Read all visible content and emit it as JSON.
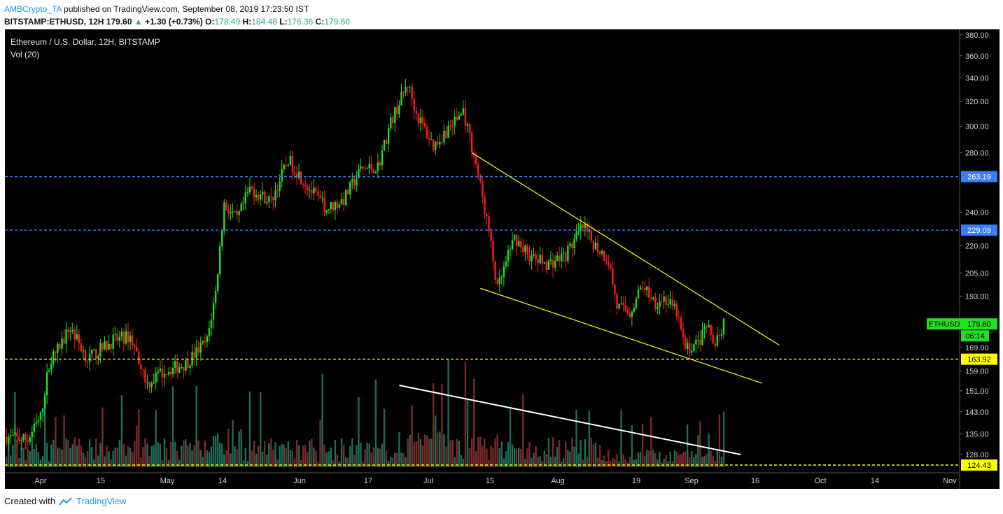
{
  "header": {
    "author": "AMBCrypto_TA",
    "published": "published on TradingView.com, September 08, 2019 17:23:50 IST",
    "symbol": "BITSTAMP:ETHUSD, 12H",
    "last": "179.60",
    "change_arrow": "▲",
    "change": "+1.30 (+0.73%)",
    "o_label": "O:",
    "o": "178.49",
    "h_label": "H:",
    "h": "184.48",
    "l_label": "L:",
    "l": "176.36",
    "c_label": "C:",
    "c": "179.60"
  },
  "chart_legend": {
    "title": "Ethereum / U.S. Dollar, 12H, BITSTAMP",
    "volume": "Vol (20)"
  },
  "footer": {
    "created_with": "Created with",
    "brand": "TradingView",
    "brand_icon": "tradingview-cloud-icon"
  },
  "colors": {
    "background": "#000000",
    "up": "#1fe01f",
    "down": "#ff1a1a",
    "vol_up": "#1f6b55",
    "vol_down": "#7a2a2a",
    "support_line": "#ffff00",
    "resistance_line": "#3a7bff",
    "trendline": "#ffff00",
    "volume_trend": "#ffffff"
  },
  "chart_data": {
    "type": "candlestick",
    "title": "Ethereum / U.S. Dollar, 12H, BITSTAMP",
    "price_scale": "log",
    "ylim": [
      115,
      385
    ],
    "y_ticks": [
      "380.00",
      "360.00",
      "340.00",
      "320.00",
      "300.00",
      "280.00",
      "240.00",
      "220.00",
      "205.00",
      "193.00",
      "169.00",
      "159.00",
      "151.00",
      "143.00",
      "135.00",
      "128.00"
    ],
    "x_ticks": [
      "Apr",
      "15",
      "May",
      "14",
      "Jun",
      "17",
      "Jul",
      "15",
      "Aug",
      "19",
      "Sep",
      "16",
      "Oct",
      "14",
      "Nov"
    ],
    "horizontal_levels": [
      {
        "price": 263.19,
        "label": "263.19",
        "style": "dashed",
        "color": "#3a7bff"
      },
      {
        "price": 229.09,
        "label": "229.09",
        "style": "dashed",
        "color": "#3a7bff"
      },
      {
        "price": 163.92,
        "label": "163.92",
        "style": "dashed",
        "color": "#ffff00"
      },
      {
        "price": 124.43,
        "label": "124.43",
        "style": "dashed",
        "color": "#ffff00"
      }
    ],
    "last_price": {
      "symbol": "ETHUSD",
      "value": "179.60",
      "countdown": "06:14"
    },
    "trendlines": [
      {
        "name": "upper wedge",
        "from": {
          "date": "2019-07-11",
          "price": 280
        },
        "to": {
          "date": "2019-09-21",
          "price": 170
        }
      },
      {
        "name": "lower wedge",
        "from": {
          "date": "2019-07-13",
          "price": 197
        },
        "to": {
          "date": "2019-09-17",
          "price": 154
        }
      },
      {
        "name": "volume downtrend",
        "color": "#ffffff",
        "from": {
          "date": "2019-06-24"
        },
        "to": {
          "date": "2019-09-12"
        }
      }
    ],
    "keypoints": [
      {
        "date": "2019-03-24",
        "price": 134
      },
      {
        "date": "2019-03-29",
        "price": 133
      },
      {
        "date": "2019-04-01",
        "price": 141
      },
      {
        "date": "2019-04-03",
        "price": 162
      },
      {
        "date": "2019-04-08",
        "price": 178
      },
      {
        "date": "2019-04-12",
        "price": 164
      },
      {
        "date": "2019-04-18",
        "price": 172
      },
      {
        "date": "2019-04-22",
        "price": 174
      },
      {
        "date": "2019-04-26",
        "price": 154
      },
      {
        "date": "2019-04-30",
        "price": 159
      },
      {
        "date": "2019-05-05",
        "price": 162
      },
      {
        "date": "2019-05-10",
        "price": 172
      },
      {
        "date": "2019-05-12",
        "price": 195
      },
      {
        "date": "2019-05-14",
        "price": 245
      },
      {
        "date": "2019-05-17",
        "price": 235
      },
      {
        "date": "2019-05-20",
        "price": 255
      },
      {
        "date": "2019-05-25",
        "price": 247
      },
      {
        "date": "2019-05-29",
        "price": 275
      },
      {
        "date": "2019-06-03",
        "price": 255
      },
      {
        "date": "2019-06-07",
        "price": 242
      },
      {
        "date": "2019-06-11",
        "price": 248
      },
      {
        "date": "2019-06-15",
        "price": 268
      },
      {
        "date": "2019-06-19",
        "price": 270
      },
      {
        "date": "2019-06-22",
        "price": 303
      },
      {
        "date": "2019-06-26",
        "price": 335
      },
      {
        "date": "2019-06-28",
        "price": 310
      },
      {
        "date": "2019-07-02",
        "price": 285
      },
      {
        "date": "2019-07-06",
        "price": 300
      },
      {
        "date": "2019-07-09",
        "price": 312
      },
      {
        "date": "2019-07-12",
        "price": 272
      },
      {
        "date": "2019-07-15",
        "price": 228
      },
      {
        "date": "2019-07-17",
        "price": 196
      },
      {
        "date": "2019-07-21",
        "price": 225
      },
      {
        "date": "2019-07-25",
        "price": 213
      },
      {
        "date": "2019-07-29",
        "price": 210
      },
      {
        "date": "2019-08-02",
        "price": 215
      },
      {
        "date": "2019-08-06",
        "price": 231
      },
      {
        "date": "2019-08-08",
        "price": 223
      },
      {
        "date": "2019-08-12",
        "price": 212
      },
      {
        "date": "2019-08-14",
        "price": 188
      },
      {
        "date": "2019-08-17",
        "price": 185
      },
      {
        "date": "2019-08-20",
        "price": 199
      },
      {
        "date": "2019-08-23",
        "price": 190
      },
      {
        "date": "2019-08-25",
        "price": 192
      },
      {
        "date": "2019-08-28",
        "price": 185
      },
      {
        "date": "2019-08-30",
        "price": 168
      },
      {
        "date": "2019-09-02",
        "price": 171
      },
      {
        "date": "2019-09-04",
        "price": 178
      },
      {
        "date": "2019-09-06",
        "price": 172
      },
      {
        "date": "2019-09-08",
        "price": 179.6
      }
    ]
  }
}
